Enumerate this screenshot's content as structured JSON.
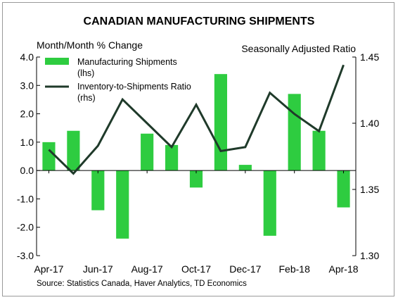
{
  "chart_data": {
    "type": "bar",
    "title": "CANADIAN MANUFACTURING SHIPMENTS",
    "left_axis_label": "Month/Month % Change",
    "right_axis_label": "Seasonally Adjusted Ratio",
    "source": "Source: Statistics Canada, Haver Analytics, TD Economics",
    "x_ticks": [
      "Apr-17",
      "Jun-17",
      "Aug-17",
      "Oct-17",
      "Dec-17",
      "Feb-18",
      "Apr-18"
    ],
    "left_ticks": [
      "4.0",
      "3.0",
      "2.0",
      "1.0",
      "0.0",
      "-1.0",
      "-2.0",
      "-3.0"
    ],
    "right_ticks": [
      "1.45",
      "1.40",
      "1.35",
      "1.30"
    ],
    "ylim_left": [
      -3.0,
      4.0
    ],
    "ylim_right": [
      1.3,
      1.45
    ],
    "grid": false,
    "legend_position": "top-left",
    "colors": {
      "bars": "#2ecc40",
      "line": "#1f3a2a"
    },
    "series": [
      {
        "name": "Manufacturing Shipments",
        "name_suffix": "(lhs)",
        "type": "bar",
        "axis": "left",
        "values": [
          1.0,
          1.4,
          -1.4,
          -2.4,
          1.3,
          0.9,
          -0.6,
          3.4,
          0.2,
          -2.3,
          2.7,
          1.4,
          -1.3
        ]
      },
      {
        "name": "Inventory-to-Shipments Ratio",
        "name_suffix": "(rhs)",
        "type": "line",
        "axis": "right",
        "values": [
          1.38,
          1.362,
          1.383,
          1.418,
          1.4,
          1.382,
          1.414,
          1.379,
          1.382,
          1.423,
          1.407,
          1.394,
          1.444
        ]
      }
    ]
  }
}
